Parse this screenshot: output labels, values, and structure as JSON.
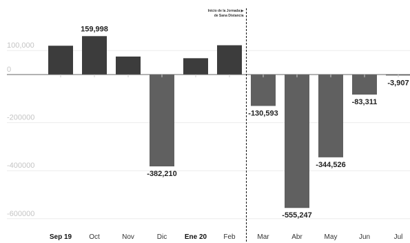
{
  "chart_data": {
    "type": "bar",
    "categories": [
      "Sep 19",
      "Oct",
      "Nov",
      "Dic",
      "Ene 20",
      "Feb",
      "Mar",
      "Abr",
      "May",
      "Jun",
      "Jul"
    ],
    "bold_categories": [
      "Sep 19",
      "Ene 20"
    ],
    "values": [
      120000,
      159998,
      75000,
      -382210,
      68000,
      122000,
      -130593,
      -555247,
      -344526,
      -83311,
      -3907
    ],
    "data_labels": [
      "",
      "159,998",
      "",
      "-382,210",
      "",
      "",
      "-130,593",
      "-555,247",
      "-344,526",
      "-83,311",
      "-3,907"
    ],
    "y_ticks": [
      100000,
      0,
      -200000,
      -400000,
      -600000
    ],
    "y_tick_labels": [
      "100,000",
      "0",
      "-200000",
      "-400000",
      "-600000"
    ],
    "ylim": [
      -650000,
      260000
    ],
    "grid": true,
    "annotation": {
      "after_category": "Feb",
      "lines": [
        "Inicio de la Jornada ▶",
        "de Sana Distancia"
      ]
    },
    "colors": {
      "positive": "#3c3c3c",
      "negative": "#606060",
      "grid": "#ececec",
      "zero_line": "#666666",
      "divider": "#111111"
    }
  }
}
